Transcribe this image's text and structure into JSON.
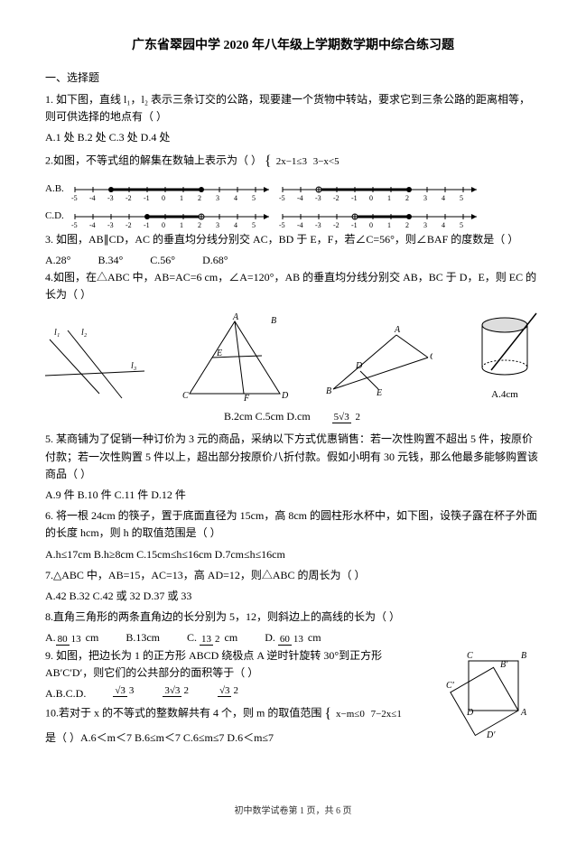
{
  "title": "广东省翠园中学 2020 年八年级上学期数学期中综合练习题",
  "section1": "一、选择题",
  "q1": "1. 如下图，直线 l₁，l₂ 表示三条订交的公路，现要建一个货物中转站，要求它到三条公路的距离相等，则可供选择的地点有（ ）",
  "q1opts": "A.1 处 B.2 处 C.3 处 D.4 处",
  "q2": "2.如图，不等式组的解集在数轴上表示为（ ）",
  "q2brace_top": "2x−1≤3",
  "q2brace_bot": "3−x<5",
  "q3": "3. 如图，AB∥CD，AC 的垂直均分线分别交 AC，BD 于 E，F，若∠C=56°，则∠BAF 的度数是（    ）",
  "q3a": "A.28°",
  "q3b": "B.34°",
  "q3c": "C.56°",
  "q3d": "D.68°",
  "q4": "4.如图，在△ABC 中，AB=AC=6 cm，∠A=120°，AB 的垂直均分线分别交 AB，BC 于 D，E，则 EC 的长为（    ）",
  "cyl_label": "A.4cm",
  "q4row": "B.2cm C.5cm D.cm",
  "q4d_frac_num": "5√3",
  "q4d_frac_den": "2",
  "q5": "5. 某商铺为了促销一种订价为 3 元的商品，采纳以下方式优惠销售：若一次性购置不超出 5 件，按原价付款；若一次性购置 5 件以上，超出部分按原价八折付款。假如小明有 30 元钱，那么他最多能够购置该商品（    ）",
  "q5opts": "A.9 件 B.10 件 C.11 件 D.12 件",
  "q6": "6. 将一根 24cm 的筷子，置于底面直径为 15cm，高 8cm 的圆柱形水杯中，如下图，设筷子露在杯子外面的长度    hcm，则 h 的取值范围是（    ）",
  "q6opts": "A.h≤17cm    B.h≥8cm C.15cm≤h≤16cm    D.7cm≤h≤16cm",
  "q7": "7.△ABC 中，AB=15，AC=13，高 AD=12，则△ABC 的周长为（    ）",
  "q7opts": "A.42            B.32            C.42 或 32        D.37 或 33",
  "q8": "8.直角三角形的两条直角边的长分别为    5，12，则斜边上的高线的长为（    ）",
  "q8a_num": "80",
  "q8a_den": "13",
  "q8a": "A.    cm",
  "q8b": "B.13cm",
  "q8c_num": "13",
  "q8c_den": "2",
  "q8c": "C.    cm",
  "q8d_num": "60",
  "q8d_den": "13",
  "q8d": "D.    cm",
  "q9": "9. 如图，把边长为 1 的正方形 ABCD 绕极点 A 逆时针旋转 30°到正方形 AB′C′D′，则它们的公共部分的面积等于（    ）",
  "q9a": "A.B.C.D.",
  "q9f1n": "√3",
  "q9f1d": "3",
  "q9f2n": "3√3",
  "q9f2d": "2",
  "q9f3n": "√3",
  "q9f3d": "2",
  "q10": "10.若对于 x 的不等式的整数解共有 4 个，则 m 的取值范围",
  "q10brace_top": "x−m≤0",
  "q10brace_bot": "7−2x≤1",
  "q10tail": "是（ ）A.6＜m＜7 B.6≤m＜7 C.6≤m≤7 D.6＜m≤7",
  "footer": "初中数学试卷第 1 页，共 6 页",
  "numline": {
    "ticks": [
      "-5",
      "-4",
      "-3",
      "-2",
      "-1",
      "0",
      "1",
      "2",
      "3",
      "4",
      "5"
    ]
  }
}
